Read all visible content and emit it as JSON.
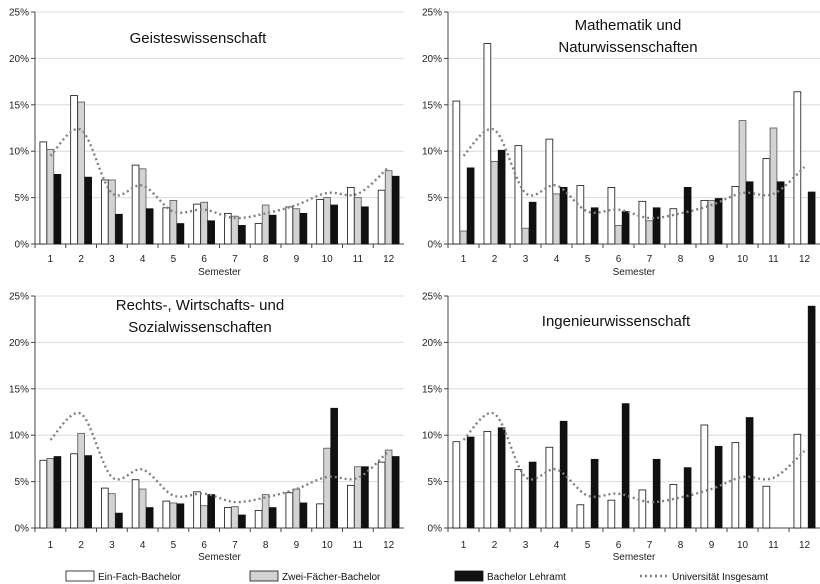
{
  "legend": [
    {
      "name": "Ein-Fach-Bachelor",
      "fill": "#ffffff"
    },
    {
      "name": "Zwei-Fächer-Bachelor",
      "fill": "#d3d3d3"
    },
    {
      "name": "Bachelor Lehramt",
      "fill": "#111111"
    },
    {
      "name": "Universität Insgesamt",
      "style": "dotted-line",
      "color": "#808080"
    }
  ],
  "chart_data": [
    {
      "type": "bar",
      "title": [
        "Geisteswissenschaft"
      ],
      "xlabel": "Semester",
      "y_ticks": [
        "0%",
        "5%",
        "10%",
        "15%",
        "20%",
        "25%"
      ],
      "ylim": [
        0,
        25
      ],
      "categories": [
        "1",
        "2",
        "3",
        "4",
        "5",
        "6",
        "7",
        "8",
        "9",
        "10",
        "11",
        "12"
      ],
      "series": [
        {
          "name": "Ein-Fach-Bachelor",
          "values": [
            11.0,
            16.0,
            6.9,
            8.5,
            3.9,
            4.3,
            3.3,
            2.2,
            4.0,
            4.8,
            6.1,
            5.8
          ]
        },
        {
          "name": "Zwei-Fächer-Bachelor",
          "values": [
            10.2,
            15.3,
            6.9,
            8.1,
            4.7,
            4.5,
            3.0,
            4.2,
            3.8,
            5.0,
            5.0,
            7.9
          ]
        },
        {
          "name": "Bachelor Lehramt",
          "values": [
            7.5,
            7.2,
            3.2,
            3.8,
            2.2,
            2.5,
            2.0,
            3.1,
            3.3,
            4.2,
            4.0,
            7.3
          ]
        }
      ],
      "line": {
        "name": "Universität Insgesamt",
        "values": [
          9.5,
          12.3,
          5.5,
          6.3,
          3.5,
          3.7,
          2.8,
          3.3,
          4.2,
          5.5,
          5.4,
          8.3
        ]
      }
    },
    {
      "type": "bar",
      "title": [
        "Mathematik und",
        "Naturwissenschaften"
      ],
      "xlabel": "Semester",
      "y_ticks": [
        "0%",
        "5%",
        "10%",
        "15%",
        "20%",
        "25%"
      ],
      "ylim": [
        0,
        25
      ],
      "categories": [
        "1",
        "2",
        "3",
        "4",
        "5",
        "6",
        "7",
        "8",
        "9",
        "10",
        "11",
        "12"
      ],
      "series": [
        {
          "name": "Ein-Fach-Bachelor",
          "values": [
            15.4,
            21.6,
            10.6,
            11.3,
            6.3,
            6.1,
            4.6,
            3.8,
            4.7,
            6.2,
            9.2,
            16.4
          ]
        },
        {
          "name": "Zwei-Fächer-Bachelor",
          "values": [
            1.4,
            8.9,
            1.7,
            5.4,
            0,
            2.0,
            2.5,
            0,
            4.7,
            13.3,
            12.5,
            0
          ]
        },
        {
          "name": "Bachelor Lehramt",
          "values": [
            8.2,
            10.1,
            4.5,
            6.1,
            3.9,
            3.5,
            3.9,
            6.1,
            4.9,
            6.7,
            6.7,
            5.6
          ]
        }
      ],
      "line": {
        "name": "Universität Insgesamt",
        "values": [
          9.5,
          12.3,
          5.5,
          6.3,
          3.5,
          3.7,
          2.8,
          3.3,
          4.2,
          5.5,
          5.4,
          8.3
        ]
      }
    },
    {
      "type": "bar",
      "title": [
        "Rechts-, Wirtschafts- und",
        "Sozialwissenschaften"
      ],
      "xlabel": "Semester",
      "y_ticks": [
        "0%",
        "5%",
        "10%",
        "15%",
        "20%",
        "25%"
      ],
      "ylim": [
        0,
        25
      ],
      "categories": [
        "1",
        "2",
        "3",
        "4",
        "5",
        "6",
        "7",
        "8",
        "9",
        "10",
        "11",
        "12"
      ],
      "series": [
        {
          "name": "Ein-Fach-Bachelor",
          "values": [
            7.3,
            8.0,
            4.3,
            5.2,
            2.9,
            3.9,
            2.2,
            1.9,
            3.8,
            2.6,
            4.6,
            7.1
          ]
        },
        {
          "name": "Zwei-Fächer-Bachelor",
          "values": [
            7.5,
            10.2,
            3.7,
            4.2,
            2.7,
            2.4,
            2.3,
            3.6,
            4.2,
            8.6,
            6.6,
            8.4
          ]
        },
        {
          "name": "Bachelor Lehramt",
          "values": [
            7.7,
            7.8,
            1.6,
            2.2,
            2.6,
            3.6,
            1.4,
            2.2,
            2.7,
            12.9,
            6.6,
            7.7
          ]
        }
      ],
      "line": {
        "name": "Universität Insgesamt",
        "values": [
          9.5,
          12.3,
          5.5,
          6.3,
          3.5,
          3.7,
          2.8,
          3.3,
          4.2,
          5.5,
          5.4,
          8.3
        ]
      }
    },
    {
      "type": "bar",
      "title": [
        "Ingenieurwissenschaft"
      ],
      "xlabel": "Semester",
      "y_ticks": [
        "0%",
        "5%",
        "10%",
        "15%",
        "20%",
        "25%"
      ],
      "ylim": [
        0,
        25
      ],
      "categories": [
        "1",
        "2",
        "3",
        "4",
        "5",
        "6",
        "7",
        "8",
        "9",
        "10",
        "11",
        "12"
      ],
      "series": [
        {
          "name": "Ein-Fach-Bachelor",
          "values": [
            9.3,
            10.4,
            6.3,
            8.7,
            2.5,
            3.0,
            4.1,
            4.7,
            11.1,
            9.2,
            4.5,
            10.1
          ]
        },
        {
          "name": "Zwei-Fächer-Bachelor",
          "values": [
            0,
            0,
            0,
            0,
            0,
            0,
            0,
            0,
            0,
            0,
            0,
            0
          ]
        },
        {
          "name": "Bachelor Lehramt",
          "values": [
            9.8,
            10.8,
            7.1,
            11.5,
            7.4,
            13.4,
            7.4,
            6.5,
            8.8,
            11.9,
            0,
            23.9
          ]
        }
      ],
      "line": {
        "name": "Universität Insgesamt",
        "values": [
          9.5,
          12.3,
          5.5,
          6.3,
          3.5,
          3.7,
          2.8,
          3.3,
          4.2,
          5.5,
          5.4,
          8.3
        ]
      }
    }
  ]
}
